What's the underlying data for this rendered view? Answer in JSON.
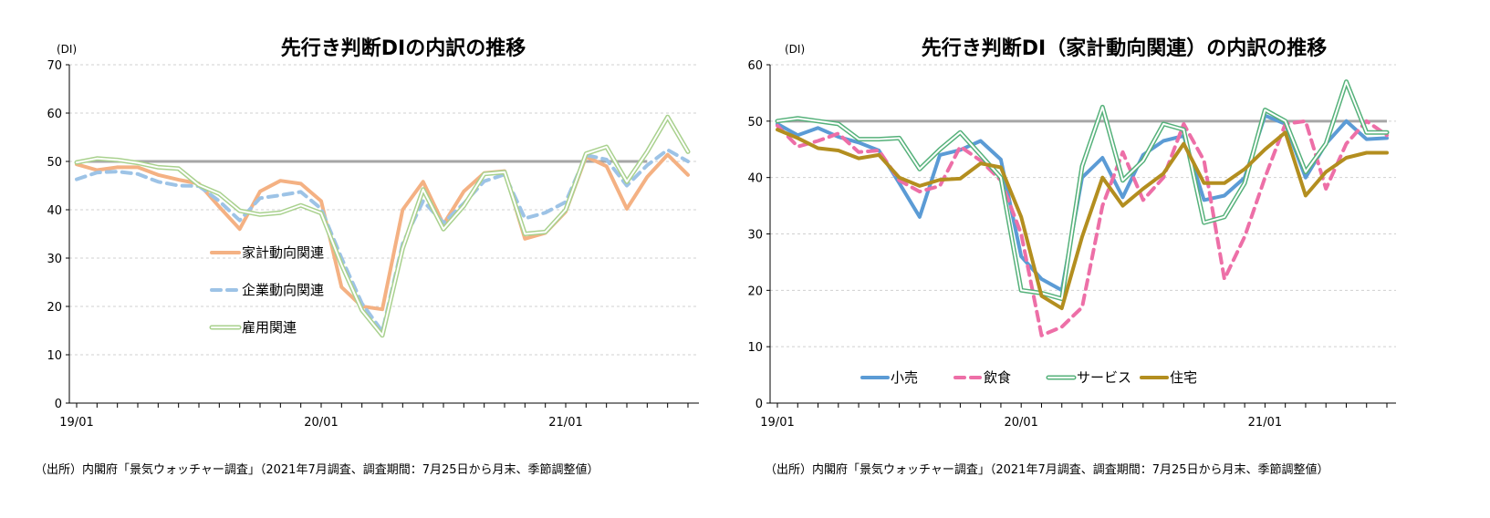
{
  "chart_data": [
    {
      "type": "line",
      "title": "先行き判断DIの内訳の推移",
      "unit_label": "(DI)",
      "ylim": [
        0,
        70
      ],
      "yticks": [
        0,
        10,
        20,
        30,
        40,
        50,
        60,
        70
      ],
      "x_tick_labels": [
        {
          "index": 0,
          "label": "19/01"
        },
        {
          "index": 12,
          "label": "20/01"
        },
        {
          "index": 24,
          "label": "21/01"
        }
      ],
      "n_points": 31,
      "reference_line": {
        "value": 50,
        "color": "#a6a6a6"
      },
      "legend_position": "center-left",
      "series": [
        {
          "name": "家計動向関連",
          "style": "solid",
          "color": "#f4b183",
          "values": [
            49.4,
            48.2,
            48.8,
            48.8,
            47.2,
            46.2,
            45.4,
            40.6,
            36.0,
            43.8,
            46.0,
            45.4,
            41.8,
            24.0,
            20.0,
            19.4,
            40.0,
            45.8,
            37.0,
            43.8,
            47.6,
            48.0,
            34.0,
            35.2,
            39.6,
            51.0,
            49.0,
            40.2,
            46.8,
            51.4,
            47.2
          ]
        },
        {
          "name": "企業動向関連",
          "style": "dashed",
          "color": "#9dc3e6",
          "values": [
            46.3,
            47.7,
            47.9,
            47.4,
            45.8,
            45.0,
            44.9,
            41.8,
            37.8,
            42.4,
            43.0,
            43.7,
            40.2,
            30.0,
            20.6,
            14.8,
            33.0,
            41.8,
            37.3,
            41.3,
            45.9,
            47.3,
            38.2,
            39.4,
            41.6,
            51.3,
            50.4,
            45.0,
            49.2,
            52.4,
            50.0
          ]
        },
        {
          "name": "雇用関連",
          "style": "double",
          "color": "#a9d18e",
          "values": [
            49.8,
            50.6,
            50.3,
            49.7,
            48.8,
            48.5,
            45.1,
            43.3,
            39.8,
            39.0,
            39.4,
            40.9,
            39.3,
            28.6,
            19.2,
            14.0,
            32.0,
            44.2,
            36.0,
            40.8,
            47.4,
            47.8,
            35.0,
            35.4,
            40.0,
            51.6,
            53.0,
            45.8,
            52.0,
            59.2,
            52.0
          ]
        }
      ]
    },
    {
      "type": "line",
      "title": "先行き判断DI（家計動向関連）の内訳の推移",
      "unit_label": "(DI)",
      "ylim": [
        0,
        60
      ],
      "yticks": [
        0,
        10,
        20,
        30,
        40,
        50,
        60
      ],
      "x_tick_labels": [
        {
          "index": 0,
          "label": "19/01"
        },
        {
          "index": 12,
          "label": "20/01"
        },
        {
          "index": 24,
          "label": "21/01"
        }
      ],
      "n_points": 31,
      "reference_line": {
        "value": 50,
        "color": "#a6a6a6"
      },
      "legend_position": "bottom-left",
      "series": [
        {
          "name": "小売",
          "style": "solid",
          "color": "#5b9bd5",
          "values": [
            49.5,
            47.5,
            48.8,
            47.2,
            46.2,
            44.8,
            39.0,
            33.0,
            44.0,
            44.9,
            46.5,
            43.2,
            26.0,
            22.0,
            20.0,
            40.0,
            43.5,
            36.5,
            44.0,
            46.5,
            47.4,
            36.0,
            36.8,
            40.0,
            51.0,
            49.5,
            40.0,
            46.0,
            50.0,
            46.8,
            47.0
          ]
        },
        {
          "name": "飲食",
          "style": "dashed",
          "color": "#ed6fa7",
          "values": [
            49.2,
            45.5,
            46.5,
            47.8,
            44.5,
            44.8,
            39.5,
            37.5,
            38.5,
            45.5,
            43.0,
            39.5,
            30.0,
            12.0,
            13.5,
            17.0,
            35.0,
            44.5,
            36.0,
            40.0,
            49.5,
            43.0,
            22.0,
            29.5,
            40.0,
            49.5,
            50.0,
            38.0,
            46.0,
            50.0,
            47.5
          ]
        },
        {
          "name": "サービス",
          "style": "double",
          "color": "#55b17a",
          "values": [
            50.0,
            50.5,
            50.0,
            49.5,
            46.8,
            46.8,
            47.0,
            41.5,
            45.0,
            48.0,
            44.0,
            40.0,
            20.0,
            19.5,
            18.5,
            42.0,
            52.5,
            39.5,
            43.0,
            49.5,
            48.5,
            32.0,
            33.0,
            39.0,
            52.0,
            50.0,
            41.0,
            46.0,
            57.0,
            48.0,
            48.0
          ]
        },
        {
          "name": "住宅",
          "style": "solid",
          "color": "#b38e1f",
          "values": [
            48.5,
            47.0,
            45.2,
            44.8,
            43.4,
            44.0,
            40.0,
            38.5,
            39.6,
            39.8,
            42.5,
            41.8,
            33.0,
            19.0,
            16.8,
            29.5,
            40.0,
            35.0,
            38.0,
            40.7,
            46.0,
            39.0,
            39.0,
            41.5,
            45.0,
            48.0,
            36.8,
            41.0,
            43.5,
            44.4,
            44.4
          ]
        }
      ]
    }
  ],
  "source_note": "（出所）内閣府「景気ウォッチャー調査」（2021年7月調査、調査期間：7月25日から月末、季節調整値）"
}
